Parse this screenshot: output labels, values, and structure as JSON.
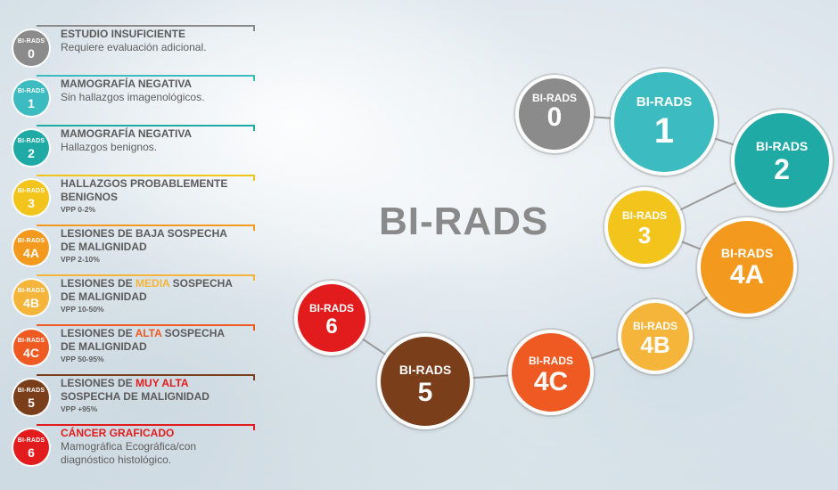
{
  "title": "BI-RADS",
  "badge_label": "BI-RADS",
  "colors": {
    "0": "#8b8b8b",
    "1": "#3cbcc0",
    "2": "#20aaa6",
    "3": "#f2c41c",
    "4A": "#f39a1e",
    "4B": "#f5b53a",
    "4C": "#ee5a22",
    "5": "#7a3e1a",
    "6": "#e21c1c"
  },
  "legend": [
    {
      "id": "0",
      "title": "ESTUDIO INSUFICIENTE",
      "desc": "Requiere evaluación adicional.",
      "color": "#8b8b8b"
    },
    {
      "id": "1",
      "title": "MAMOGRAFÍA NEGATIVA",
      "desc": "Sin hallazgos imagenológicos.",
      "color": "#3cbcc0"
    },
    {
      "id": "2",
      "title": "MAMOGRAFÍA NEGATIVA",
      "desc": "Hallazgos benignos.",
      "color": "#20aaa6"
    },
    {
      "id": "3",
      "title_l1": "HALLAZGOS PROBABLEMENTE",
      "title_l2": "BENIGNOS",
      "vpp": "VPP 0-2%",
      "color": "#f2c41c"
    },
    {
      "id": "4A",
      "title_l1": "LESIONES DE BAJA SOSPECHA",
      "title_l2": "DE MALIGNIDAD",
      "vpp": "VPP 2-10%",
      "color": "#f39a1e"
    },
    {
      "id": "4B",
      "title_pre": "LESIONES DE ",
      "title_hl": "MEDIA",
      "title_post": " SOSPECHA",
      "title_l2": "DE MALIGNIDAD",
      "vpp": "VPP 10-50%",
      "color": "#f5b53a"
    },
    {
      "id": "4C",
      "title_pre": "LESIONES DE ",
      "title_hl": "ALTA",
      "title_post": " SOSPECHA",
      "title_l2": "DE MALIGNIDAD",
      "vpp": "VPP 50-95%",
      "color": "#ee5a22"
    },
    {
      "id": "5",
      "title_pre": "LESIONES DE ",
      "title_hl": "MUY ALTA",
      "title_post": "",
      "title_l2": "SOSPECHA DE MALIGNIDAD",
      "vpp": "VPP +95%",
      "color": "#7a3e1a"
    },
    {
      "id": "6",
      "title": "CÁNCER GRAFICADO",
      "desc_l1": "Mamográfica Ecográfica/con",
      "desc_l2": "diagnóstico histológico.",
      "color": "#e21c1c"
    }
  ],
  "circles": [
    {
      "id": "0",
      "label": "BI-RADS",
      "num": "0"
    },
    {
      "id": "1",
      "label": "BI-RADS",
      "num": "1"
    },
    {
      "id": "2",
      "label": "BI-RADS",
      "num": "2"
    },
    {
      "id": "3",
      "label": "BI-RADS",
      "num": "3"
    },
    {
      "id": "4A",
      "label": "BI-RADS",
      "num": "4A"
    },
    {
      "id": "4B",
      "label": "BI-RADS",
      "num": "4B"
    },
    {
      "id": "4C",
      "label": "BI-RADS",
      "num": "4C"
    },
    {
      "id": "5",
      "label": "BI-RADS",
      "num": "5"
    },
    {
      "id": "6",
      "label": "BI-RADS",
      "num": "6"
    }
  ]
}
